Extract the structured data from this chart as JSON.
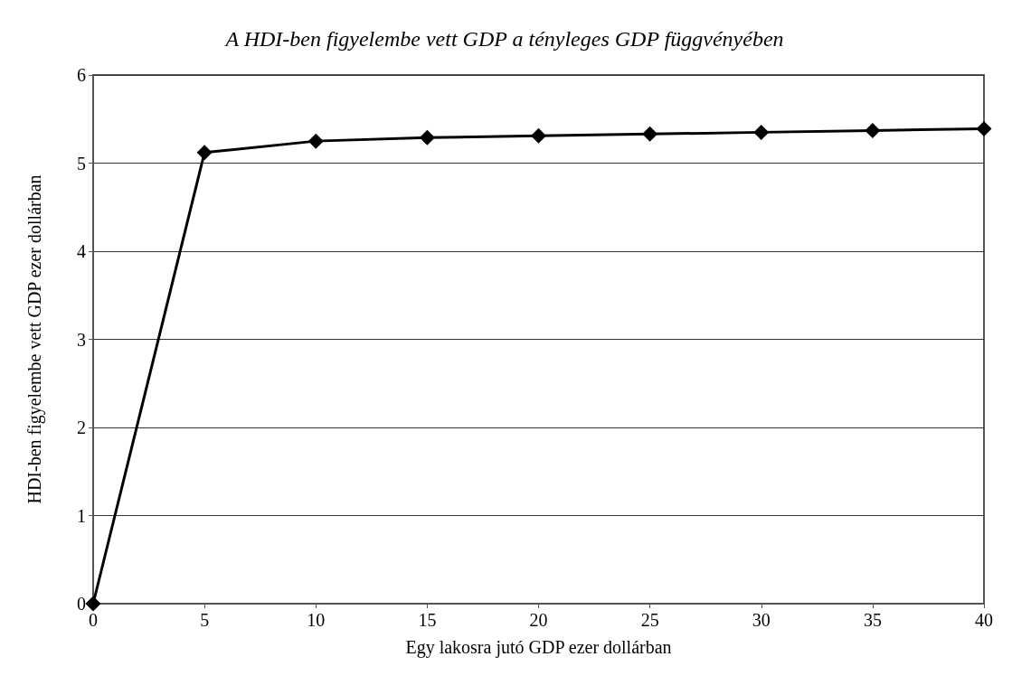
{
  "chart_data": {
    "type": "line",
    "title": "A HDI-ben figyelembe vett GDP a tényleges GDP függvényében",
    "xlabel": "Egy lakosra jutó GDP ezer dollárban",
    "ylabel": "HDI-ben figyelembe vett GDP ezer dollárban",
    "x": [
      0,
      5,
      10,
      15,
      20,
      25,
      30,
      35,
      40
    ],
    "series": [
      {
        "color": "#000000",
        "values": [
          0,
          5.12,
          5.25,
          5.29,
          5.31,
          5.33,
          5.35,
          5.37,
          5.39
        ]
      }
    ],
    "xlim": [
      0,
      40
    ],
    "xticks": [
      0,
      5,
      10,
      15,
      20,
      25,
      30,
      35,
      40
    ],
    "ylim": [
      0,
      6
    ],
    "yticks": [
      0,
      1,
      2,
      3,
      4,
      5,
      6
    ],
    "grid": "y",
    "marker": "diamond",
    "line_style": "solid"
  }
}
